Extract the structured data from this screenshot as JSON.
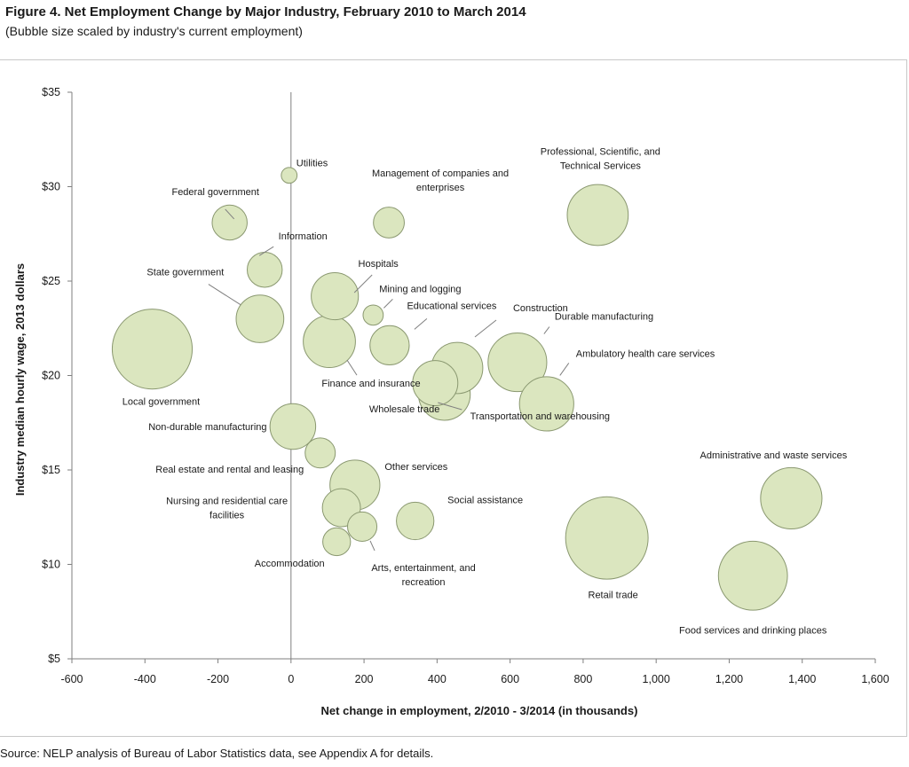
{
  "figure": {
    "title": "Figure 4. Net Employment Change by Major Industry, February 2010 to March 2014",
    "subtitle": "(Bubble size scaled by industry's current employment)",
    "source": "Source: NELP analysis of Bureau of Labor Statistics data, see Appendix A for details."
  },
  "chart_data": {
    "type": "bubble",
    "title": "Figure 4. Net Employment Change by Major Industry, February 2010 to March 2014",
    "subtitle": "(Bubble size scaled by industry's current employment)",
    "xlabel": "Net change in employment, 2/2010 - 3/2014 (in thousands)",
    "ylabel": "Industry median hourly wage, 2013 dollars",
    "xlim": [
      -600,
      1600
    ],
    "ylim": [
      5,
      35
    ],
    "x_ticks": [
      -600,
      -400,
      -200,
      0,
      200,
      400,
      600,
      800,
      1000,
      1200,
      1400,
      1600
    ],
    "x_tick_labels": [
      "-600",
      "-400",
      "-200",
      "0",
      "200",
      "400",
      "600",
      "800",
      "1,000",
      "1,200",
      "1,400",
      "1,600"
    ],
    "y_ticks": [
      5,
      10,
      15,
      20,
      25,
      30,
      35
    ],
    "y_tick_labels": [
      "$5",
      "$10",
      "$15",
      "$20",
      "$25",
      "$30",
      "$35"
    ],
    "bubble_color": "#dbe6bf",
    "bubble_stroke": "#8a9870",
    "points": [
      {
        "name": "Utilities",
        "label_lines": [
          "Utilities"
        ],
        "x": -5,
        "y": 30.6,
        "size": 0.55
      },
      {
        "name": "Federal government",
        "label_lines": [
          "Federal government"
        ],
        "x": -168,
        "y": 28.1,
        "size": 2.7
      },
      {
        "name": "Management of companies and enterprises",
        "label_lines": [
          "Management of companies and",
          "enterprises"
        ],
        "x": 268,
        "y": 28.1,
        "size": 2.1
      },
      {
        "name": "Professional, Scientific, and Technical Services",
        "label_lines": [
          "Professional, Scientific, and",
          "Technical Services"
        ],
        "x": 840,
        "y": 28.5,
        "size": 8.2
      },
      {
        "name": "Information",
        "label_lines": [
          "Information"
        ],
        "x": -72,
        "y": 25.6,
        "size": 2.7
      },
      {
        "name": "Hospitals",
        "label_lines": [
          "Hospitals"
        ],
        "x": 120,
        "y": 24.2,
        "size": 4.9
      },
      {
        "name": "State government",
        "label_lines": [
          "State government"
        ],
        "x": -85,
        "y": 23.0,
        "size": 5.0
      },
      {
        "name": "Mining and logging",
        "label_lines": [
          "Mining and logging"
        ],
        "x": 225,
        "y": 23.2,
        "size": 0.9
      },
      {
        "name": "Educational services",
        "label_lines": [
          "Educational services"
        ],
        "x": 270,
        "y": 21.6,
        "size": 3.4
      },
      {
        "name": "Construction",
        "label_lines": [
          "Construction"
        ],
        "x": 455,
        "y": 20.4,
        "size": 5.8
      },
      {
        "name": "Durable manufacturing",
        "label_lines": [
          "Durable manufacturing"
        ],
        "x": 620,
        "y": 20.7,
        "size": 7.6
      },
      {
        "name": "Ambulatory health care services",
        "label_lines": [
          "Ambulatory health care services"
        ],
        "x": 700,
        "y": 18.5,
        "size": 6.5
      },
      {
        "name": "Local government",
        "label_lines": [
          "Local government"
        ],
        "x": -380,
        "y": 21.4,
        "size": 14.1
      },
      {
        "name": "Finance and insurance",
        "label_lines": [
          "Finance and insurance"
        ],
        "x": 105,
        "y": 21.8,
        "size": 6.0
      },
      {
        "name": "Wholesale trade",
        "label_lines": [
          "Wholesale trade"
        ],
        "x": 420,
        "y": 19.0,
        "size": 5.9
      },
      {
        "name": "Transportation and warehousing",
        "label_lines": [
          "Transportation and warehousing"
        ],
        "x": 395,
        "y": 19.6,
        "size": 4.5
      },
      {
        "name": "Non-durable manufacturing",
        "label_lines": [
          "Non-durable manufacturing"
        ],
        "x": 5,
        "y": 17.3,
        "size": 4.6
      },
      {
        "name": "Real estate and rental and leasing",
        "label_lines": [
          "Real estate and rental and leasing"
        ],
        "x": 80,
        "y": 15.9,
        "size": 2.0
      },
      {
        "name": "Other services",
        "label_lines": [
          "Other services"
        ],
        "x": 175,
        "y": 14.2,
        "size": 5.5
      },
      {
        "name": "Nursing and residential care facilities",
        "label_lines": [
          "Nursing and residential care",
          "facilities"
        ],
        "x": 138,
        "y": 13.0,
        "size": 3.2
      },
      {
        "name": "Social assistance",
        "label_lines": [
          "Social assistance"
        ],
        "x": 340,
        "y": 12.3,
        "size": 3.1
      },
      {
        "name": "Arts, entertainment, and recreation",
        "label_lines": [
          "Arts, entertainment, and",
          "recreation"
        ],
        "x": 195,
        "y": 12.0,
        "size": 1.9
      },
      {
        "name": "Accommodation",
        "label_lines": [
          "Accommodation"
        ],
        "x": 125,
        "y": 11.2,
        "size": 1.7
      },
      {
        "name": "Retail trade",
        "label_lines": [
          "Retail trade"
        ],
        "x": 865,
        "y": 11.4,
        "size": 15.0
      },
      {
        "name": "Administrative and waste services",
        "label_lines": [
          "Administrative and waste services"
        ],
        "x": 1370,
        "y": 13.5,
        "size": 8.3
      },
      {
        "name": "Food services and drinking places",
        "label_lines": [
          "Food services and drinking places"
        ],
        "x": 1265,
        "y": 9.4,
        "size": 10.5
      }
    ]
  }
}
